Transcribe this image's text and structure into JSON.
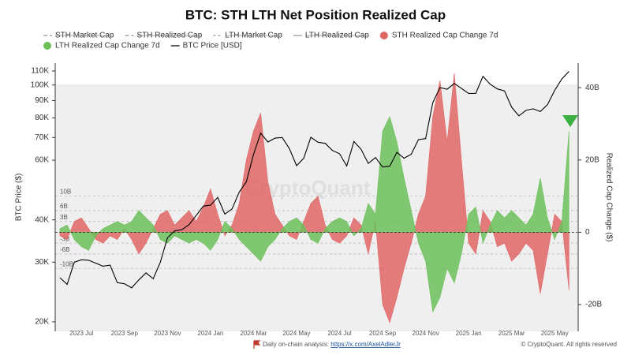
{
  "chart_data": {
    "type": "area",
    "title": "BTC: STH LTH Net Position Realized Cap",
    "y_label": "BTC Price ($)",
    "y2_label": "Realized Cap Change ($)",
    "watermark": "CryptoQuant",
    "footer": {
      "text": "Daily on-chain analysis: ",
      "link": "https://x.com/AxelAdlerJr",
      "copyright": "© CryptoQuant. All rights reserved"
    },
    "log_scale": true,
    "categories": [
      null,
      null,
      null,
      "2023 Jul",
      null,
      null,
      null,
      null,
      null,
      "2023 Sep",
      null,
      null,
      null,
      null,
      null,
      "2023 Nov",
      null,
      null,
      null,
      null,
      null,
      "2024 Jan",
      null,
      null,
      null,
      null,
      null,
      "2024 Mar",
      null,
      null,
      null,
      null,
      null,
      "2024 May",
      null,
      null,
      null,
      null,
      null,
      "2024 Jul",
      null,
      null,
      null,
      null,
      null,
      "2024 Sep",
      null,
      null,
      null,
      null,
      null,
      "2024 Nov",
      null,
      null,
      null,
      null,
      null,
      "2025 Jan",
      null,
      null,
      null,
      null,
      null,
      "2025 Mar",
      null,
      null,
      null,
      null,
      null,
      "2025 May",
      null,
      null
    ],
    "ylim": [
      18750,
      113000
    ],
    "yticks": [
      {
        "value": 20000,
        "label": "20K"
      },
      {
        "value": 30000,
        "label": "30K"
      },
      {
        "value": 40000,
        "label": "40K"
      },
      {
        "value": 60000,
        "label": "60K"
      },
      {
        "value": 70000,
        "label": "70K"
      },
      {
        "value": 80000,
        "label": "80K"
      },
      {
        "value": 90000,
        "label": "90K"
      },
      {
        "value": 100000,
        "label": "100K"
      },
      {
        "value": 110000,
        "label": "110K"
      }
    ],
    "y2lim": [
      -27.4,
      45.7
    ],
    "y2ticks": [
      {
        "value": -20,
        "label": "-20B"
      },
      0,
      {
        "value": 20,
        "label": "20B"
      },
      {
        "value": 40,
        "label": "40B"
      }
    ],
    "reference_lines": [
      {
        "value": 10,
        "label": "10B"
      },
      {
        "value": 6,
        "label": "6B"
      },
      {
        "value": 3,
        "label": "3B"
      },
      {
        "value": -3,
        "label": "-3B"
      },
      {
        "value": -6,
        "label": "-6B"
      },
      {
        "value": -10,
        "label": "-10B"
      }
    ],
    "series": [
      {
        "name": "STH Market Cap",
        "color": "#999999",
        "dash": "5 3",
        "visible": false
      },
      {
        "name": "STH Realized Cap",
        "color": "#999999",
        "dash": "5 3",
        "visible": false
      },
      {
        "name": "LTH Market Cap",
        "color": "#999999",
        "dash": "3 3",
        "visible": false
      },
      {
        "name": "LTH Realized Cap",
        "color": "#999999",
        "dash": "1 0",
        "visible": false
      },
      {
        "name": "STH Realized Cap Change 7d",
        "color": "#e06666",
        "kind": "area",
        "axis": "y2",
        "visible": true,
        "values": [
          -1,
          -2,
          3,
          4,
          1,
          -2,
          -3,
          -1,
          -2,
          1,
          -2,
          -6,
          -3,
          1,
          5,
          6,
          2,
          4,
          6,
          3,
          7,
          12,
          5,
          -1,
          2,
          8,
          20,
          28,
          33,
          14,
          5,
          2,
          -1,
          -2,
          3,
          8,
          10,
          2,
          -2,
          -3,
          -1,
          4,
          2,
          -6,
          3,
          -20,
          -25,
          -18,
          -10,
          -3,
          5,
          10,
          32,
          42,
          25,
          44,
          20,
          -3,
          -6,
          6,
          3,
          -4,
          -3,
          -8,
          -6,
          -3,
          -5,
          -17,
          -6,
          5,
          3,
          -16
        ]
      },
      {
        "name": "LTH Realized Cap Change 7d",
        "color": "#6cc05a",
        "kind": "area",
        "axis": "y2",
        "visible": true,
        "values": [
          1,
          2,
          -2,
          -4,
          -5,
          -1,
          1,
          2,
          3,
          2,
          3,
          6,
          4,
          2,
          -2,
          -3,
          -1,
          -2,
          -3,
          -2,
          -3,
          -5,
          -2,
          3,
          1,
          -2,
          -4,
          -6,
          -8,
          -4,
          -2,
          1,
          3,
          4,
          2,
          -2,
          -3,
          1,
          3,
          4,
          3,
          -1,
          1,
          8,
          5,
          28,
          32,
          25,
          15,
          6,
          -3,
          -8,
          -22,
          -18,
          -10,
          -14,
          -6,
          5,
          7,
          -3,
          2,
          6,
          4,
          6,
          4,
          2,
          5,
          15,
          4,
          -2,
          3,
          28
        ]
      },
      {
        "name": "BTC Price [USD]",
        "color": "#000000",
        "kind": "line",
        "axis": "y",
        "visible": true,
        "values": [
          27000,
          25800,
          30000,
          30500,
          30400,
          29800,
          29200,
          29400,
          26100,
          25900,
          25200,
          26600,
          27900,
          26800,
          30000,
          35400,
          37100,
          37400,
          38700,
          41200,
          43900,
          44200,
          46600,
          41600,
          43100,
          48300,
          51800,
          62400,
          72100,
          67900,
          69700,
          70000,
          64900,
          57800,
          60800,
          70100,
          67800,
          67300,
          64100,
          62700,
          57700,
          68100,
          64600,
          58700,
          61100,
          57300,
          57600,
          63300,
          60800,
          62500,
          69000,
          69500,
          88700,
          98300,
          97200,
          101100,
          97700,
          94400,
          94500,
          106100,
          100600,
          97400,
          96100,
          86000,
          81100,
          84200,
          85100,
          83500,
          87500,
          96400,
          104200,
          109700
        ]
      }
    ]
  }
}
